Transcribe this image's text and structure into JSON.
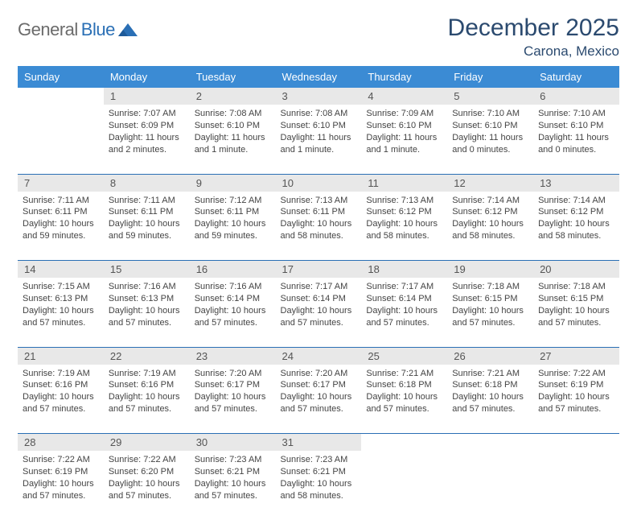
{
  "brand": {
    "part1": "General",
    "part2": "Blue"
  },
  "title": "December 2025",
  "location": "Carona, Mexico",
  "colors": {
    "header_bg": "#3b8bd4",
    "header_text": "#ffffff",
    "daynum_bg": "#e8e8e8",
    "daynum_text": "#555555",
    "rule": "#2a6fb5",
    "title_color": "#2b4a6f",
    "body_text": "#444444"
  },
  "weekdays": [
    "Sunday",
    "Monday",
    "Tuesday",
    "Wednesday",
    "Thursday",
    "Friday",
    "Saturday"
  ],
  "start_offset": 1,
  "days": [
    {
      "n": 1,
      "sunrise": "7:07 AM",
      "sunset": "6:09 PM",
      "daylight": "11 hours and 2 minutes."
    },
    {
      "n": 2,
      "sunrise": "7:08 AM",
      "sunset": "6:10 PM",
      "daylight": "11 hours and 1 minute."
    },
    {
      "n": 3,
      "sunrise": "7:08 AM",
      "sunset": "6:10 PM",
      "daylight": "11 hours and 1 minute."
    },
    {
      "n": 4,
      "sunrise": "7:09 AM",
      "sunset": "6:10 PM",
      "daylight": "11 hours and 1 minute."
    },
    {
      "n": 5,
      "sunrise": "7:10 AM",
      "sunset": "6:10 PM",
      "daylight": "11 hours and 0 minutes."
    },
    {
      "n": 6,
      "sunrise": "7:10 AM",
      "sunset": "6:10 PM",
      "daylight": "11 hours and 0 minutes."
    },
    {
      "n": 7,
      "sunrise": "7:11 AM",
      "sunset": "6:11 PM",
      "daylight": "10 hours and 59 minutes."
    },
    {
      "n": 8,
      "sunrise": "7:11 AM",
      "sunset": "6:11 PM",
      "daylight": "10 hours and 59 minutes."
    },
    {
      "n": 9,
      "sunrise": "7:12 AM",
      "sunset": "6:11 PM",
      "daylight": "10 hours and 59 minutes."
    },
    {
      "n": 10,
      "sunrise": "7:13 AM",
      "sunset": "6:11 PM",
      "daylight": "10 hours and 58 minutes."
    },
    {
      "n": 11,
      "sunrise": "7:13 AM",
      "sunset": "6:12 PM",
      "daylight": "10 hours and 58 minutes."
    },
    {
      "n": 12,
      "sunrise": "7:14 AM",
      "sunset": "6:12 PM",
      "daylight": "10 hours and 58 minutes."
    },
    {
      "n": 13,
      "sunrise": "7:14 AM",
      "sunset": "6:12 PM",
      "daylight": "10 hours and 58 minutes."
    },
    {
      "n": 14,
      "sunrise": "7:15 AM",
      "sunset": "6:13 PM",
      "daylight": "10 hours and 57 minutes."
    },
    {
      "n": 15,
      "sunrise": "7:16 AM",
      "sunset": "6:13 PM",
      "daylight": "10 hours and 57 minutes."
    },
    {
      "n": 16,
      "sunrise": "7:16 AM",
      "sunset": "6:14 PM",
      "daylight": "10 hours and 57 minutes."
    },
    {
      "n": 17,
      "sunrise": "7:17 AM",
      "sunset": "6:14 PM",
      "daylight": "10 hours and 57 minutes."
    },
    {
      "n": 18,
      "sunrise": "7:17 AM",
      "sunset": "6:14 PM",
      "daylight": "10 hours and 57 minutes."
    },
    {
      "n": 19,
      "sunrise": "7:18 AM",
      "sunset": "6:15 PM",
      "daylight": "10 hours and 57 minutes."
    },
    {
      "n": 20,
      "sunrise": "7:18 AM",
      "sunset": "6:15 PM",
      "daylight": "10 hours and 57 minutes."
    },
    {
      "n": 21,
      "sunrise": "7:19 AM",
      "sunset": "6:16 PM",
      "daylight": "10 hours and 57 minutes."
    },
    {
      "n": 22,
      "sunrise": "7:19 AM",
      "sunset": "6:16 PM",
      "daylight": "10 hours and 57 minutes."
    },
    {
      "n": 23,
      "sunrise": "7:20 AM",
      "sunset": "6:17 PM",
      "daylight": "10 hours and 57 minutes."
    },
    {
      "n": 24,
      "sunrise": "7:20 AM",
      "sunset": "6:17 PM",
      "daylight": "10 hours and 57 minutes."
    },
    {
      "n": 25,
      "sunrise": "7:21 AM",
      "sunset": "6:18 PM",
      "daylight": "10 hours and 57 minutes."
    },
    {
      "n": 26,
      "sunrise": "7:21 AM",
      "sunset": "6:18 PM",
      "daylight": "10 hours and 57 minutes."
    },
    {
      "n": 27,
      "sunrise": "7:22 AM",
      "sunset": "6:19 PM",
      "daylight": "10 hours and 57 minutes."
    },
    {
      "n": 28,
      "sunrise": "7:22 AM",
      "sunset": "6:19 PM",
      "daylight": "10 hours and 57 minutes."
    },
    {
      "n": 29,
      "sunrise": "7:22 AM",
      "sunset": "6:20 PM",
      "daylight": "10 hours and 57 minutes."
    },
    {
      "n": 30,
      "sunrise": "7:23 AM",
      "sunset": "6:21 PM",
      "daylight": "10 hours and 57 minutes."
    },
    {
      "n": 31,
      "sunrise": "7:23 AM",
      "sunset": "6:21 PM",
      "daylight": "10 hours and 58 minutes."
    }
  ],
  "labels": {
    "sunrise": "Sunrise:",
    "sunset": "Sunset:",
    "daylight": "Daylight:"
  }
}
